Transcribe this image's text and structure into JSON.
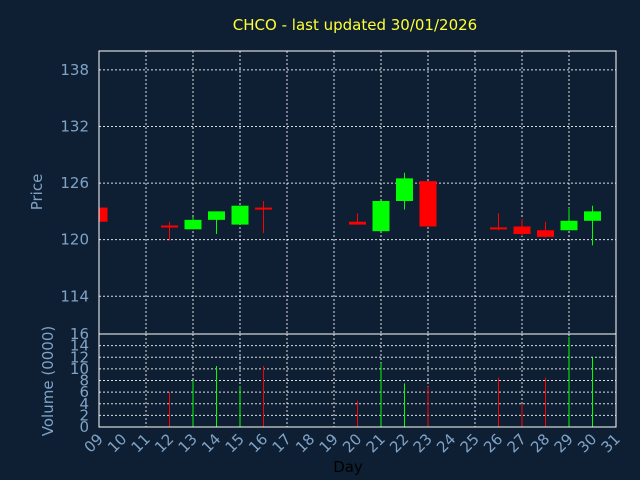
{
  "chart_data": {
    "type": "candlestick",
    "title": "CHCO - last updated 30/01/2026",
    "xlabel": "Day",
    "categories": [
      "09",
      "10",
      "11",
      "12",
      "13",
      "14",
      "15",
      "16",
      "17",
      "18",
      "19",
      "20",
      "21",
      "22",
      "23",
      "24",
      "25",
      "26",
      "27",
      "28",
      "29",
      "30",
      "31"
    ],
    "price": {
      "ylabel": "Price",
      "ylim": [
        110,
        140
      ],
      "ticks": [
        114,
        120,
        126,
        132,
        138
      ],
      "candles": [
        {
          "day": "09",
          "open": 123.4,
          "high": 123.4,
          "low": 121.9,
          "close": 121.9
        },
        {
          "day": "12",
          "open": 121.5,
          "high": 121.9,
          "low": 119.9,
          "close": 121.4
        },
        {
          "day": "13",
          "open": 121.1,
          "high": 122.4,
          "low": 121.1,
          "close": 122.1
        },
        {
          "day": "14",
          "open": 122.1,
          "high": 123.0,
          "low": 120.6,
          "close": 123.0
        },
        {
          "day": "15",
          "open": 121.6,
          "high": 123.6,
          "low": 121.6,
          "close": 123.6
        },
        {
          "day": "16",
          "open": 123.4,
          "high": 124.1,
          "low": 120.7,
          "close": 123.2
        },
        {
          "day": "20",
          "open": 121.9,
          "high": 122.8,
          "low": 121.7,
          "close": 121.6
        },
        {
          "day": "21",
          "open": 120.9,
          "high": 124.1,
          "low": 120.9,
          "close": 124.1
        },
        {
          "day": "22",
          "open": 124.1,
          "high": 127.1,
          "low": 123.2,
          "close": 126.5
        },
        {
          "day": "23",
          "open": 126.2,
          "high": 126.2,
          "low": 121.4,
          "close": 121.4
        },
        {
          "day": "26",
          "open": 121.3,
          "high": 122.8,
          "low": 121.0,
          "close": 121.2
        },
        {
          "day": "27",
          "open": 121.4,
          "high": 122.2,
          "low": 120.4,
          "close": 120.6
        },
        {
          "day": "28",
          "open": 121.0,
          "high": 121.9,
          "low": 120.2,
          "close": 120.3
        },
        {
          "day": "29",
          "open": 121.0,
          "high": 123.4,
          "low": 121.0,
          "close": 122.0
        },
        {
          "day": "30",
          "open": 122.0,
          "high": 123.6,
          "low": 119.4,
          "close": 123.0
        }
      ]
    },
    "volume": {
      "ylabel": "Volume (0000)",
      "ylim": [
        0,
        16
      ],
      "ticks": [
        0,
        2,
        4,
        6,
        8,
        10,
        12,
        14,
        16
      ],
      "bars": [
        {
          "day": "12",
          "value": 6.0
        },
        {
          "day": "13",
          "value": 8.0
        },
        {
          "day": "14",
          "value": 10.5
        },
        {
          "day": "15",
          "value": 7.0
        },
        {
          "day": "16",
          "value": 10.5
        },
        {
          "day": "20",
          "value": 4.5
        },
        {
          "day": "21",
          "value": 11.0
        },
        {
          "day": "22",
          "value": 7.5
        },
        {
          "day": "23",
          "value": 7.0
        },
        {
          "day": "26",
          "value": 8.5
        },
        {
          "day": "27",
          "value": 4.0
        },
        {
          "day": "28",
          "value": 8.5
        },
        {
          "day": "29",
          "value": 15.5
        },
        {
          "day": "30",
          "value": 12.0
        }
      ]
    },
    "grid": true,
    "colors": {
      "up": "#00ff00",
      "down": "#ff0000",
      "background": "#0f1f33",
      "title": "#ffff33",
      "axis_text": "#7fa3c6",
      "grid": "#ffffff"
    }
  }
}
